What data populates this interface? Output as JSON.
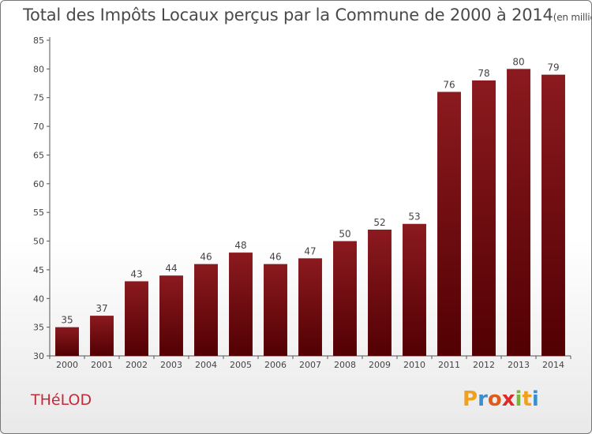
{
  "chart_data": {
    "type": "bar",
    "title": "Total des Impôts Locaux perçus par la Commune de 2000 à 2014",
    "title_unit": "(en milliers d'€)",
    "categories": [
      "2000",
      "2001",
      "2002",
      "2003",
      "2004",
      "2005",
      "2006",
      "2007",
      "2008",
      "2009",
      "2010",
      "2011",
      "2012",
      "2013",
      "2014"
    ],
    "values": [
      35,
      37,
      43,
      44,
      46,
      48,
      46,
      47,
      50,
      52,
      53,
      76,
      78,
      80,
      79
    ],
    "ylim": [
      30,
      85
    ],
    "yticks": [
      30,
      35,
      40,
      45,
      50,
      55,
      60,
      65,
      70,
      75,
      80,
      85
    ],
    "xlabel": "",
    "ylabel": "",
    "grid": false,
    "bar_color": "#8b1a1f",
    "bar_color_dark": "#520003"
  },
  "commune": "THéLOD",
  "logo": {
    "letters": [
      "P",
      "r",
      "o",
      "x",
      "i",
      "t",
      "i"
    ],
    "colors": [
      "#f0a020",
      "#3a8fd0",
      "#e05a1a",
      "#e02a2a",
      "#77b83a",
      "#f0a020",
      "#3a8fd0"
    ]
  }
}
